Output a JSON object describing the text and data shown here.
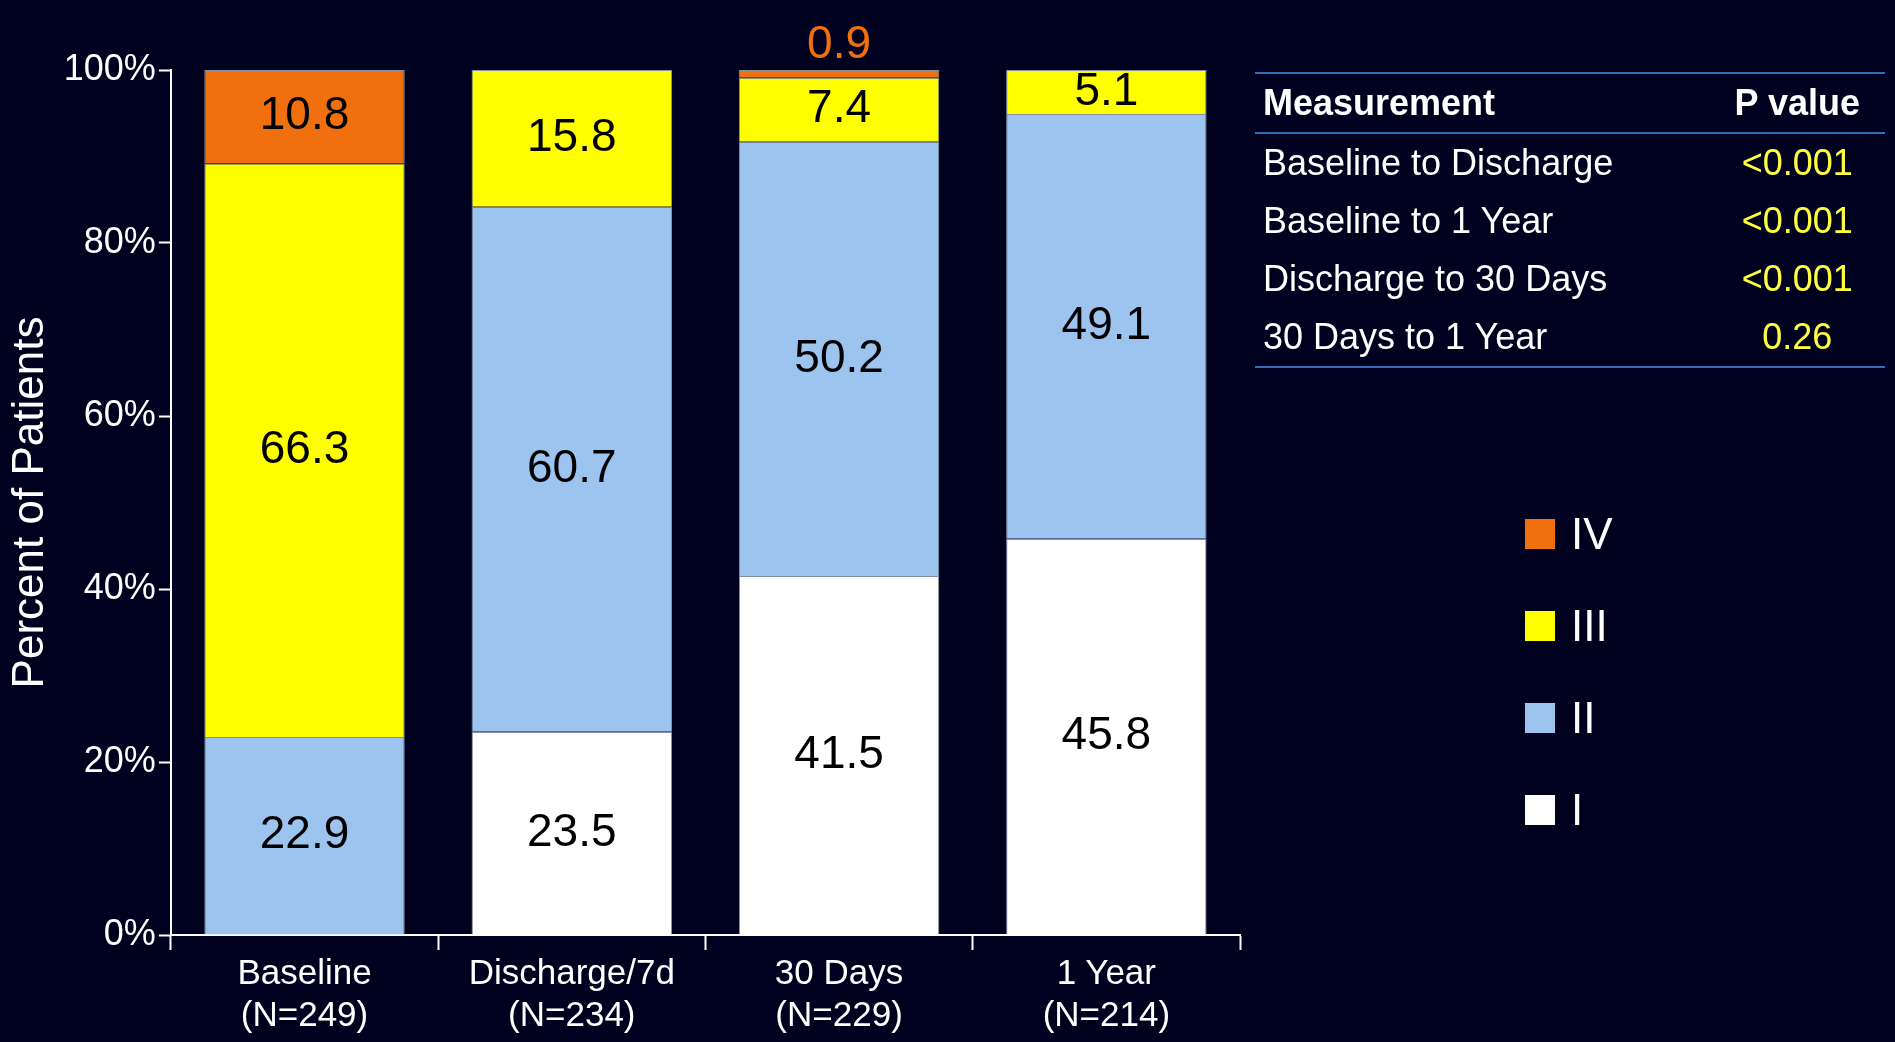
{
  "chart_data": {
    "type": "bar",
    "stacked": true,
    "ylabel": "Percent of Patients",
    "categories": [
      "Baseline\n(N=249)",
      "Discharge/7d\n(N=234)",
      "30 Days\n(N=229)",
      "1 Year\n(N=214)"
    ],
    "series": [
      {
        "name": "I",
        "color": "#ffffff",
        "values": [
          null,
          23.5,
          41.5,
          45.8
        ]
      },
      {
        "name": "II",
        "color": "#9dc3ef",
        "values": [
          22.9,
          60.7,
          50.2,
          49.1
        ]
      },
      {
        "name": "III",
        "color": "#ffff00",
        "values": [
          66.3,
          15.8,
          7.4,
          5.1
        ]
      },
      {
        "name": "IV",
        "color": "#f07010",
        "values": [
          10.8,
          null,
          0.9,
          null
        ]
      }
    ],
    "ylim": [
      0,
      100
    ],
    "yticks": [
      {
        "value": 0,
        "label": "0%"
      },
      {
        "value": 20,
        "label": "20%"
      },
      {
        "value": 40,
        "label": "40%"
      },
      {
        "value": 60,
        "label": "60%"
      },
      {
        "value": 80,
        "label": "80%"
      },
      {
        "value": 100,
        "label": "100%"
      }
    ],
    "grid": false,
    "legend": "right",
    "data_labels": true,
    "annotations": [
      "Measurement",
      "P value",
      "Baseline to Discharge",
      "<0.001",
      "Baseline to 1 Year",
      "<0.001",
      "Discharge to 30 Days",
      "<0.001",
      "30 Days to 1 Year",
      "0.26"
    ]
  }
}
